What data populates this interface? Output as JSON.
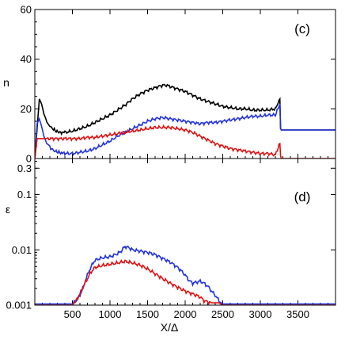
{
  "chart_data": [
    {
      "panel": "(c)",
      "type": "line",
      "ylabel": "n",
      "xlabel": "",
      "xlim": [
        0,
        4000
      ],
      "ylim": [
        0,
        60
      ],
      "yticks": [
        0,
        20,
        40,
        60
      ],
      "ytick_labels": [
        "0",
        "20",
        "40",
        "60"
      ],
      "xticks": [
        500,
        1000,
        1500,
        2000,
        2500,
        3000,
        3500
      ],
      "series": [
        {
          "color": "#000000",
          "x": [
            0,
            30,
            60,
            90,
            120,
            160,
            200,
            260,
            320,
            400,
            500,
            600,
            700,
            800,
            900,
            1000,
            1100,
            1200,
            1300,
            1400,
            1500,
            1600,
            1700,
            1750,
            1800,
            1900,
            2000,
            2100,
            2200,
            2300,
            2400,
            2500,
            2600,
            2700,
            2800,
            2900,
            3000,
            3100,
            3200,
            3260,
            3270,
            3280,
            3300,
            3400,
            3500,
            3600,
            3700,
            3800,
            3900,
            4000
          ],
          "y": [
            0,
            12,
            24,
            22,
            18,
            15,
            13,
            11.5,
            10.5,
            10.5,
            11,
            12,
            13,
            14.5,
            16,
            17.5,
            19.5,
            21.5,
            24,
            26,
            27.5,
            28.5,
            29.5,
            29.5,
            29,
            28,
            27,
            25.5,
            24,
            23,
            22,
            21,
            20.5,
            20,
            20,
            19.5,
            19.5,
            19.5,
            20,
            24,
            12,
            11.5,
            11.5,
            11.5,
            11.5,
            11.5,
            11.5,
            11.5,
            11.5,
            11.5
          ]
        },
        {
          "color": "#2233dd",
          "x": [
            0,
            30,
            60,
            90,
            120,
            160,
            200,
            260,
            320,
            400,
            500,
            600,
            700,
            800,
            900,
            1000,
            1100,
            1200,
            1300,
            1400,
            1500,
            1600,
            1700,
            1800,
            1900,
            2000,
            2100,
            2200,
            2300,
            2400,
            2500,
            2600,
            2700,
            2800,
            2900,
            3000,
            3100,
            3200,
            3260,
            3270,
            3280,
            3300,
            3400,
            3500,
            3600,
            3700,
            3800,
            3900,
            4000
          ],
          "y": [
            0,
            14,
            16,
            13,
            9,
            6,
            4.5,
            3,
            2.5,
            2,
            2,
            2.5,
            3,
            4,
            5.5,
            7,
            9,
            10.5,
            12,
            13.5,
            15,
            16,
            16.5,
            16,
            15.5,
            15,
            14.5,
            14,
            14.5,
            14.5,
            15,
            15.5,
            16,
            16.5,
            17,
            17,
            17.5,
            17.5,
            22,
            12,
            11.5,
            11.5,
            11.5,
            11.5,
            11.5,
            11.5,
            11.5,
            11.5,
            11.5
          ]
        },
        {
          "color": "#dd1111",
          "x": [
            0,
            30,
            60,
            100,
            200,
            300,
            400,
            500,
            600,
            700,
            800,
            900,
            1000,
            1100,
            1200,
            1300,
            1400,
            1500,
            1600,
            1700,
            1800,
            1900,
            2000,
            2100,
            2200,
            2300,
            2400,
            2500,
            2600,
            2700,
            2800,
            2900,
            3000,
            3100,
            3200,
            3260,
            3270,
            3280,
            3300,
            3400,
            3500,
            3600,
            3700,
            3800,
            3900,
            4000
          ],
          "y": [
            0,
            8,
            8,
            8,
            8,
            8,
            8,
            8,
            8,
            8.5,
            8.5,
            9,
            9.5,
            10,
            10.5,
            11,
            11.5,
            12,
            12.5,
            12.5,
            12.5,
            12,
            11.5,
            10.5,
            9,
            7.5,
            6,
            5,
            4,
            3.5,
            3,
            2.5,
            2,
            2,
            1.5,
            6,
            1,
            0,
            0,
            0,
            0,
            0,
            0,
            0,
            0,
            0
          ]
        }
      ]
    },
    {
      "panel": "(d)",
      "type": "line",
      "ylabel": "ε",
      "xlabel": "X/Δ",
      "xlim": [
        0,
        4000
      ],
      "ylim": [
        0.001,
        0.45
      ],
      "yscale": "log",
      "yticks": [
        0.001,
        0.01,
        0.1,
        0.3
      ],
      "ytick_labels": [
        "0.001",
        "0.01",
        "0.1",
        "0.3"
      ],
      "xticks": [
        500,
        1000,
        1500,
        2000,
        2500,
        3000,
        3500
      ],
      "xtick_labels": [
        "500",
        "1000",
        "1500",
        "2000",
        "2500",
        "3000",
        "3500"
      ],
      "series": [
        {
          "color": "#2233dd",
          "x": [
            0,
            450,
            500,
            550,
            600,
            650,
            700,
            750,
            800,
            900,
            1000,
            1100,
            1150,
            1200,
            1250,
            1300,
            1400,
            1500,
            1600,
            1700,
            1800,
            1900,
            2000,
            2050,
            2100,
            2150,
            2200,
            2250,
            2300,
            2350,
            2400,
            2450,
            2500,
            2550,
            2600,
            3000,
            3500,
            4000
          ],
          "y": [
            0.00105,
            0.00105,
            0.00105,
            0.0012,
            0.0015,
            0.0022,
            0.0035,
            0.005,
            0.0065,
            0.0072,
            0.0075,
            0.0085,
            0.0095,
            0.0115,
            0.011,
            0.01,
            0.0095,
            0.009,
            0.0082,
            0.007,
            0.006,
            0.0048,
            0.0035,
            0.0028,
            0.0025,
            0.0026,
            0.0027,
            0.0025,
            0.0022,
            0.0018,
            0.0015,
            0.0012,
            0.00105,
            0.00105,
            0.00105,
            0.00105,
            0.00105,
            0.00105
          ]
        },
        {
          "color": "#dd1111",
          "x": [
            0,
            400,
            500,
            550,
            600,
            650,
            700,
            750,
            800,
            900,
            1000,
            1100,
            1200,
            1250,
            1300,
            1400,
            1500,
            1600,
            1700,
            1800,
            1900,
            2000,
            2100,
            2150,
            2200,
            2250,
            2300,
            2350,
            2400,
            2450,
            2500,
            3000,
            4000
          ],
          "y": [
            0.001,
            0.001,
            0.001,
            0.0012,
            0.0016,
            0.0022,
            0.003,
            0.004,
            0.0048,
            0.0052,
            0.0055,
            0.0058,
            0.0062,
            0.006,
            0.0058,
            0.0053,
            0.0045,
            0.0037,
            0.003,
            0.0025,
            0.0021,
            0.0018,
            0.0016,
            0.0015,
            0.0014,
            0.0012,
            0.00115,
            0.0011,
            0.0011,
            0.0011,
            0.001,
            0.001,
            0.001
          ]
        }
      ]
    }
  ]
}
